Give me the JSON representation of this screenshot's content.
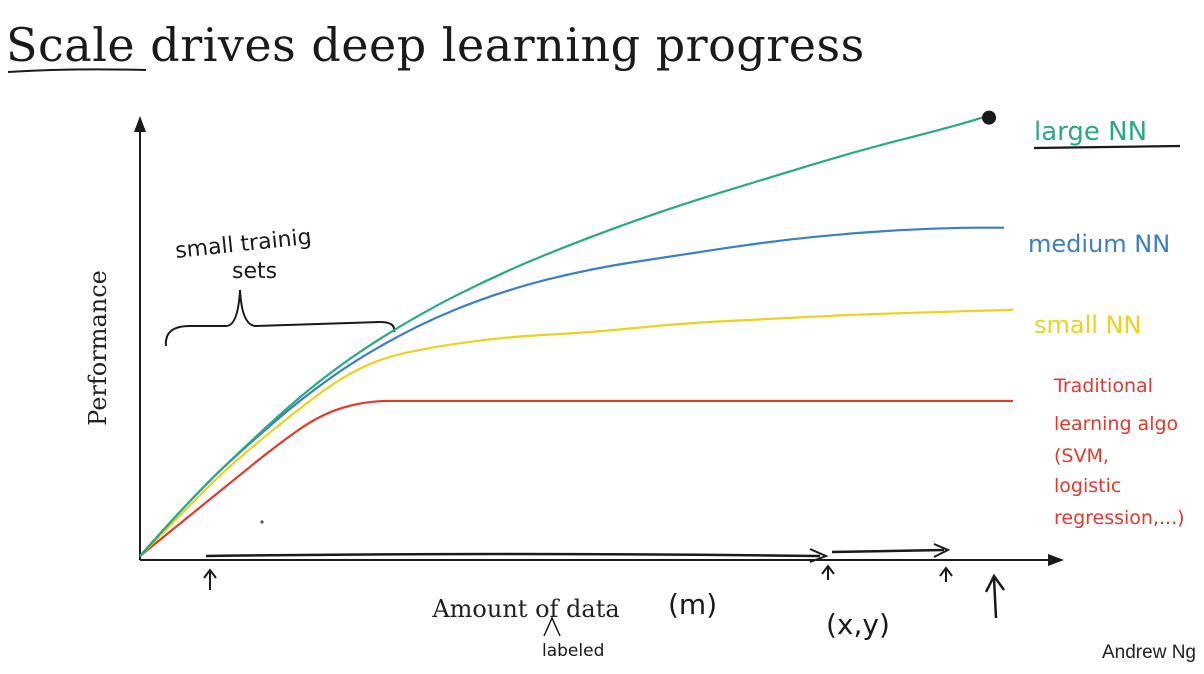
{
  "slide": {
    "title_word1": "Scale",
    "title_rest": " drives deep learning progress",
    "author": "Andrew Ng"
  },
  "annotations": {
    "small_training_sets_line1": "small trainig",
    "small_training_sets_line2": "sets",
    "m_label": "(m)",
    "xy_label": "(x,y)",
    "labeled_note": "labeled"
  },
  "colors": {
    "large": "#2aa888",
    "medium": "#3b7fc4",
    "small": "#ecd21e",
    "traditional": "#e03a2e",
    "ink": "#1a1a1a"
  },
  "chart_data": {
    "type": "line",
    "xlabel": "Amount of data",
    "ylabel": "Performance",
    "title": "Scale drives deep learning progress",
    "grid": false,
    "legend": "right, inline at line ends",
    "xlim": [
      0,
      1
    ],
    "ylim": [
      0,
      1
    ],
    "series": [
      {
        "name": "large NN",
        "color": "#2aa888",
        "x": [
          0,
          0.05,
          0.1,
          0.2,
          0.3,
          0.4,
          0.5,
          0.6,
          0.7,
          0.8,
          0.9,
          0.95
        ],
        "y": [
          0,
          0.11,
          0.21,
          0.39,
          0.52,
          0.62,
          0.7,
          0.77,
          0.83,
          0.89,
          0.94,
          0.97
        ]
      },
      {
        "name": "medium NN",
        "color": "#3b7fc4",
        "x": [
          0,
          0.05,
          0.1,
          0.2,
          0.3,
          0.4,
          0.5,
          0.6,
          0.7,
          0.8,
          0.9,
          0.96
        ],
        "y": [
          0,
          0.11,
          0.21,
          0.38,
          0.5,
          0.58,
          0.63,
          0.66,
          0.69,
          0.71,
          0.72,
          0.72
        ]
      },
      {
        "name": "small NN",
        "color": "#ecd21e",
        "x": [
          0,
          0.05,
          0.1,
          0.2,
          0.25,
          0.3,
          0.4,
          0.5,
          0.6,
          0.7,
          0.8,
          0.97
        ],
        "y": [
          0,
          0.1,
          0.2,
          0.36,
          0.42,
          0.45,
          0.48,
          0.49,
          0.51,
          0.52,
          0.53,
          0.54
        ]
      },
      {
        "name": "Traditional learning algo (SVM, logistic regression, ...)",
        "color": "#e03a2e",
        "x": [
          0,
          0.05,
          0.1,
          0.15,
          0.2,
          0.25,
          0.3,
          0.5,
          0.7,
          0.9,
          0.97
        ],
        "y": [
          0,
          0.08,
          0.16,
          0.24,
          0.31,
          0.34,
          0.34,
          0.34,
          0.34,
          0.34,
          0.34
        ]
      }
    ],
    "legend_labels": {
      "large": "large NN",
      "medium": "medium NN",
      "small": "small NN",
      "traditional_lines": [
        "Traditional",
        "learning algo",
        "(SVM,",
        "logistic",
        "regression,...)"
      ]
    }
  }
}
